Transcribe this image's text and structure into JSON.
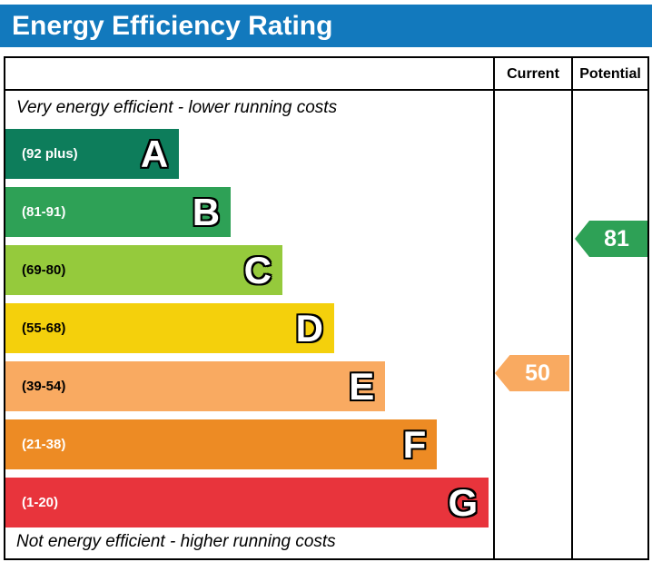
{
  "title": "Energy Efficiency Rating",
  "header": {
    "current": "Current",
    "potential": "Potential"
  },
  "captions": {
    "top": "Very energy efficient - lower running costs",
    "bottom": "Not energy efficient - higher running costs"
  },
  "colors": {
    "title_bar": "#1279bd"
  },
  "chart_data": {
    "type": "bar",
    "subtype": "energy-efficiency-rating",
    "title": "Energy Efficiency Rating",
    "legend_position": "none",
    "grid": false,
    "bands": [
      {
        "letter": "A",
        "range": "(92 plus)",
        "min": 92,
        "max": 100,
        "color": "#0d7d5b",
        "text_color": "#ffffff",
        "width_pct": 35.6
      },
      {
        "letter": "B",
        "range": "(81-91)",
        "min": 81,
        "max": 91,
        "color": "#2ea156",
        "text_color": "#ffffff",
        "width_pct": 46.2
      },
      {
        "letter": "C",
        "range": "(69-80)",
        "min": 69,
        "max": 80,
        "color": "#95ca3c",
        "text_color": "#000000",
        "width_pct": 56.8
      },
      {
        "letter": "D",
        "range": "(55-68)",
        "min": 55,
        "max": 68,
        "color": "#f4d00c",
        "text_color": "#000000",
        "width_pct": 67.4
      },
      {
        "letter": "E",
        "range": "(39-54)",
        "min": 39,
        "max": 54,
        "color": "#f9aa61",
        "text_color": "#000000",
        "width_pct": 77.9
      },
      {
        "letter": "F",
        "range": "(21-38)",
        "min": 21,
        "max": 38,
        "color": "#ed8b24",
        "text_color": "#ffffff",
        "width_pct": 88.5
      },
      {
        "letter": "G",
        "range": "(1-20)",
        "min": 1,
        "max": 20,
        "color": "#e8343c",
        "text_color": "#ffffff",
        "width_pct": 99.1
      }
    ],
    "markers": {
      "current": {
        "value": 50,
        "band": "E",
        "color": "#f9aa61"
      },
      "potential": {
        "value": 81,
        "band": "B",
        "color": "#2ea156"
      }
    }
  }
}
